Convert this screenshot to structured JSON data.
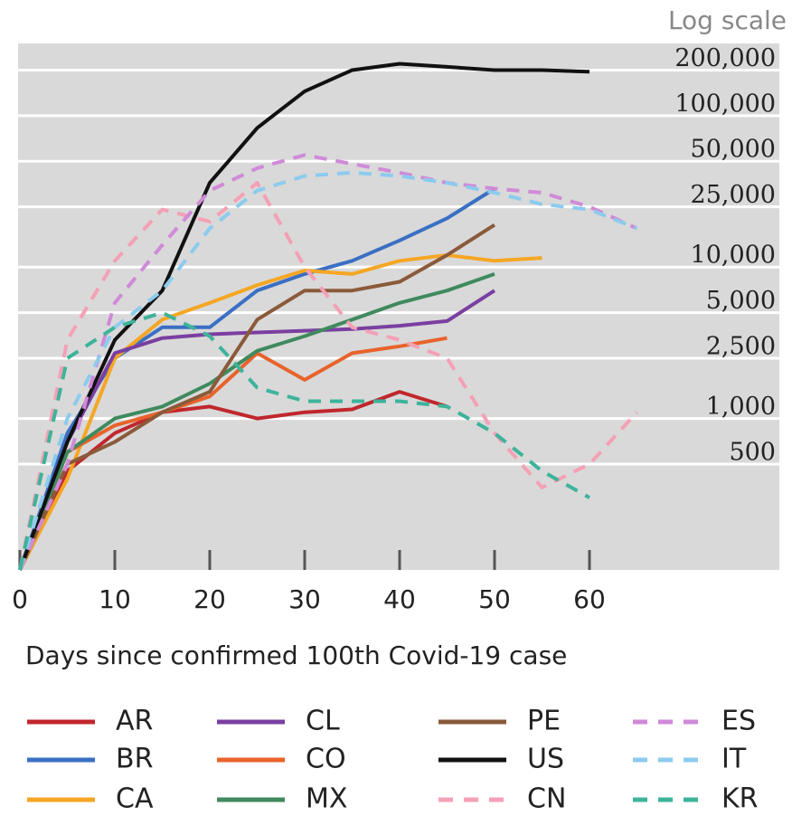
{
  "chart_data": {
    "type": "line",
    "annotation": "Log scale",
    "x_label": "Days since confirmed 100th Covid-19 case",
    "log_y": true,
    "grid": true,
    "xlim": [
      0,
      80
    ],
    "xticks": [
      0,
      10,
      20,
      30,
      40,
      50,
      60
    ],
    "ylim": [
      100,
      300000
    ],
    "yticks": [
      500,
      {
        "value": 1000,
        "label": "1,000"
      },
      {
        "value": 2500,
        "label": "2,500"
      },
      {
        "value": 5000,
        "label": "5,000"
      },
      {
        "value": 10000,
        "label": "10,000"
      },
      {
        "value": 25000,
        "label": "25,000"
      },
      {
        "value": 50000,
        "label": "50,000"
      },
      {
        "value": 100000,
        "label": "100,000"
      },
      {
        "value": 200000,
        "label": "200,000"
      }
    ],
    "x": [
      0,
      5,
      10,
      15,
      20,
      25,
      30,
      35,
      40,
      45,
      50,
      55,
      60,
      65
    ],
    "series": [
      {
        "name": "AR",
        "color": "#c0272d",
        "dash": false,
        "values": [
          100,
          450,
          800,
          1100,
          1200,
          1000,
          1100,
          1150,
          1500,
          1200,
          null,
          null,
          null,
          null
        ]
      },
      {
        "name": "BR",
        "color": "#3a6fc4",
        "dash": false,
        "values": [
          100,
          800,
          2500,
          4000,
          4000,
          7000,
          9000,
          11000,
          15000,
          21000,
          33000,
          null,
          null,
          null
        ]
      },
      {
        "name": "CA",
        "color": "#f5a623",
        "dash": false,
        "values": [
          100,
          400,
          2500,
          4500,
          5800,
          7600,
          9500,
          9000,
          11000,
          12000,
          11000,
          11500,
          null,
          null
        ]
      },
      {
        "name": "CL",
        "color": "#7a3fa0",
        "dash": false,
        "values": [
          100,
          700,
          2700,
          3400,
          3600,
          3700,
          3800,
          3900,
          4100,
          4400,
          7000,
          null,
          null,
          null
        ]
      },
      {
        "name": "CO",
        "color": "#e8632b",
        "dash": false,
        "values": [
          100,
          600,
          900,
          1100,
          1400,
          2700,
          1800,
          2700,
          3000,
          3400,
          null,
          null,
          null,
          null
        ]
      },
      {
        "name": "MX",
        "color": "#3f8a5e",
        "dash": false,
        "values": [
          100,
          600,
          1000,
          1200,
          1700,
          2800,
          3500,
          4500,
          5800,
          7000,
          9000,
          null,
          null,
          null
        ]
      },
      {
        "name": "PE",
        "color": "#8a5a3a",
        "dash": false,
        "values": [
          100,
          500,
          700,
          1100,
          1500,
          4500,
          7000,
          7000,
          8000,
          12000,
          19000,
          null,
          null,
          null
        ]
      },
      {
        "name": "US",
        "color": "#111111",
        "dash": false,
        "values": [
          100,
          700,
          3300,
          7000,
          36000,
          83000,
          145000,
          200000,
          220000,
          210000,
          200000,
          200000,
          195000,
          null
        ]
      },
      {
        "name": "CN",
        "color": "#f4a0b5",
        "dash": true,
        "values": [
          100,
          3300,
          11000,
          24000,
          20000,
          36000,
          10000,
          4000,
          3300,
          2500,
          800,
          350,
          500,
          1100
        ]
      },
      {
        "name": "ES",
        "color": "#d08ad8",
        "dash": true,
        "values": [
          100,
          500,
          5800,
          14000,
          32000,
          45000,
          55000,
          48000,
          42000,
          36000,
          33000,
          31000,
          25000,
          18000
        ]
      },
      {
        "name": "IT",
        "color": "#8ccbee",
        "dash": true,
        "values": [
          100,
          1000,
          4000,
          7000,
          18000,
          32000,
          40000,
          42000,
          40000,
          36000,
          31000,
          26000,
          24000,
          18000
        ]
      },
      {
        "name": "KR",
        "color": "#3db39a",
        "dash": true,
        "values": [
          100,
          2500,
          4000,
          5000,
          3500,
          1600,
          1300,
          1300,
          1300,
          1200,
          800,
          450,
          300,
          null
        ]
      }
    ]
  }
}
